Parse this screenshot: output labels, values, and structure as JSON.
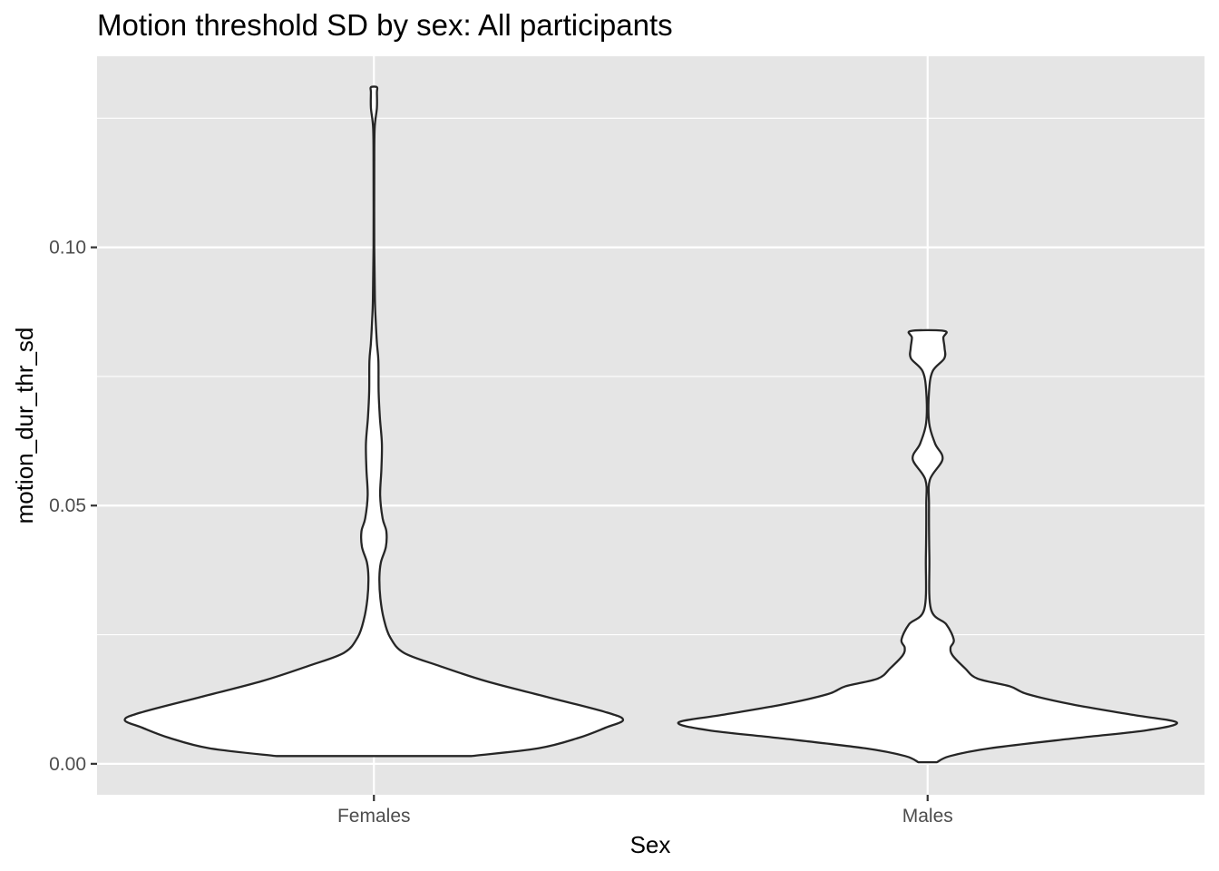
{
  "chart_data": {
    "type": "violin",
    "title": "Motion threshold SD by sex: All participants",
    "xlabel": "Sex",
    "ylabel": "motion_dur_thr_sd",
    "categories": [
      "Females",
      "Males"
    ],
    "ylim": [
      -0.006,
      0.137
    ],
    "y_ticks": [
      0.0,
      0.05,
      0.1
    ],
    "y_tick_labels": [
      "0.00",
      "0.05",
      "0.10"
    ],
    "grid": true,
    "legend": "none",
    "series": [
      {
        "category": "Females",
        "range": [
          0.0015,
          0.131
        ],
        "density_profile": [
          [
            0.0015,
            0.39
          ],
          [
            0.003,
            0.66
          ],
          [
            0.005,
            0.82
          ],
          [
            0.007,
            0.93
          ],
          [
            0.0085,
            1.0
          ],
          [
            0.01,
            0.93
          ],
          [
            0.013,
            0.69
          ],
          [
            0.016,
            0.45
          ],
          [
            0.019,
            0.26
          ],
          [
            0.0215,
            0.12
          ],
          [
            0.0245,
            0.065
          ],
          [
            0.028,
            0.04
          ],
          [
            0.032,
            0.026
          ],
          [
            0.036,
            0.022
          ],
          [
            0.039,
            0.028
          ],
          [
            0.042,
            0.048
          ],
          [
            0.045,
            0.05
          ],
          [
            0.0475,
            0.035
          ],
          [
            0.052,
            0.025
          ],
          [
            0.057,
            0.03
          ],
          [
            0.062,
            0.032
          ],
          [
            0.067,
            0.024
          ],
          [
            0.072,
            0.019
          ],
          [
            0.078,
            0.018
          ],
          [
            0.0815,
            0.012
          ],
          [
            0.086,
            0.007
          ],
          [
            0.09,
            0.004
          ],
          [
            0.1,
            0.0015
          ],
          [
            0.115,
            0.0015
          ],
          [
            0.123,
            0.003
          ],
          [
            0.127,
            0.012
          ],
          [
            0.13,
            0.012
          ],
          [
            0.131,
            0.012
          ]
        ]
      },
      {
        "category": "Males",
        "range": [
          0.0003,
          0.0838
        ],
        "density_profile": [
          [
            0.0003,
            0.037
          ],
          [
            0.0015,
            0.09
          ],
          [
            0.003,
            0.25
          ],
          [
            0.005,
            0.6
          ],
          [
            0.0065,
            0.88
          ],
          [
            0.008,
            1.0
          ],
          [
            0.0095,
            0.82
          ],
          [
            0.0115,
            0.58
          ],
          [
            0.0135,
            0.4
          ],
          [
            0.015,
            0.33
          ],
          [
            0.0165,
            0.2
          ],
          [
            0.0185,
            0.15
          ],
          [
            0.021,
            0.1
          ],
          [
            0.0225,
            0.092
          ],
          [
            0.024,
            0.105
          ],
          [
            0.027,
            0.075
          ],
          [
            0.03,
            0.013
          ],
          [
            0.04,
            0.007
          ],
          [
            0.05,
            0.0055
          ],
          [
            0.055,
            0.009
          ],
          [
            0.059,
            0.06
          ],
          [
            0.062,
            0.03
          ],
          [
            0.066,
            0.006
          ],
          [
            0.072,
            0.0055
          ],
          [
            0.076,
            0.02
          ],
          [
            0.0785,
            0.067
          ],
          [
            0.0805,
            0.068
          ],
          [
            0.0825,
            0.063
          ],
          [
            0.0838,
            0.068
          ]
        ]
      }
    ]
  }
}
